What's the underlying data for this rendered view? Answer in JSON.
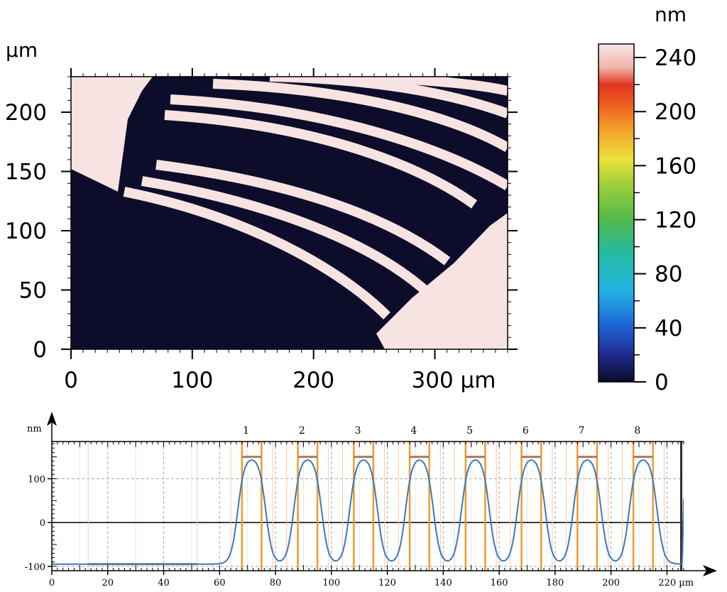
{
  "chart_data": [
    {
      "type": "heatmap",
      "title": "",
      "x_unit_label": "300 µm",
      "y_unit_label": "µm",
      "xlim": [
        0,
        360
      ],
      "ylim": [
        0,
        230
      ],
      "x_ticks": [
        0,
        100,
        200,
        300
      ],
      "x_tick_labels": [
        "0",
        "100",
        "200",
        "300 µm"
      ],
      "y_ticks": [
        0,
        50,
        100,
        150,
        200
      ],
      "y_tick_labels": [
        "0",
        "50",
        "100",
        "150",
        "200"
      ],
      "high_color": "#f7e3e1",
      "low_color": "#0d0c2a",
      "colorbar": {
        "unit": "nm",
        "range": [
          0,
          250
        ],
        "ticks": [
          0,
          40,
          80,
          120,
          160,
          200,
          240
        ],
        "tick_labels": [
          "0",
          "40",
          "80",
          "120",
          "160",
          "200",
          "240"
        ]
      }
    },
    {
      "type": "line",
      "title": "",
      "ylabel": "nm",
      "x_unit": "µm",
      "xlim": [
        0,
        226
      ],
      "ylim": [
        -110,
        185
      ],
      "x_ticks": [
        0,
        20,
        40,
        60,
        80,
        100,
        120,
        140,
        160,
        180,
        200,
        220
      ],
      "x_tick_labels": [
        "0",
        "20",
        "40",
        "60",
        "80",
        "100",
        "120",
        "140",
        "160",
        "180",
        "200",
        "220 µm"
      ],
      "y_ticks": [
        -100,
        0,
        100
      ],
      "y_tick_labels": [
        "-100",
        "0",
        "100"
      ],
      "grid": true,
      "line_color": "#3a78c2",
      "marker_color": "#f39a2b",
      "reference_region_x": [
        13,
        52
      ],
      "baseline": -95,
      "plateau": 150,
      "steps": [
        {
          "label": "1",
          "left": 66.5,
          "right": 76.5
        },
        {
          "label": "2",
          "left": 86.5,
          "right": 96.5
        },
        {
          "label": "3",
          "left": 106.5,
          "right": 116.5
        },
        {
          "label": "4",
          "left": 126.5,
          "right": 136.5
        },
        {
          "label": "5",
          "left": 146.5,
          "right": 156.5
        },
        {
          "label": "6",
          "left": 166.5,
          "right": 176.5
        },
        {
          "label": "7",
          "left": 186.5,
          "right": 196.5
        },
        {
          "label": "8",
          "left": 206.5,
          "right": 216.5
        }
      ],
      "end_rise_x": 225.5
    }
  ]
}
